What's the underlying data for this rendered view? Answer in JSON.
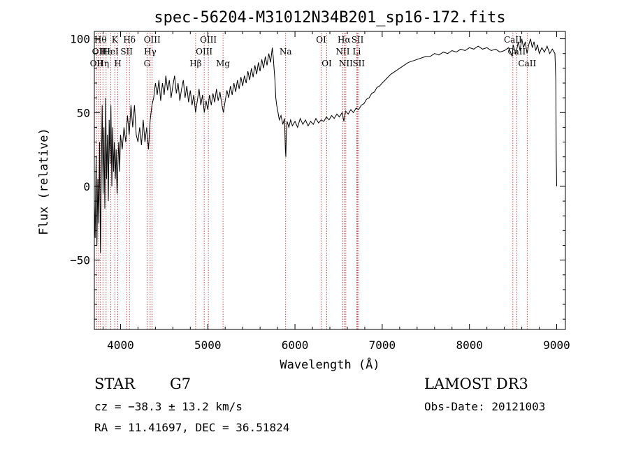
{
  "chart_data": {
    "type": "line",
    "title": "spec-56204-M31012N34B201_sp16-172.fits",
    "xlabel": "Wavelength (Å)",
    "ylabel": "Flux (relative)",
    "xlim": [
      3700,
      9100
    ],
    "ylim": [
      -97,
      105
    ],
    "xticks": [
      4000,
      5000,
      6000,
      7000,
      8000,
      9000
    ],
    "yticks": [
      -50,
      0,
      50,
      100
    ],
    "grid": false,
    "series": [
      {
        "color": "#000000",
        "points": [
          [
            3700,
            -10
          ],
          [
            3710,
            -35
          ],
          [
            3720,
            20
          ],
          [
            3730,
            -40
          ],
          [
            3740,
            5
          ],
          [
            3750,
            -25
          ],
          [
            3760,
            30
          ],
          [
            3770,
            -45
          ],
          [
            3780,
            10
          ],
          [
            3790,
            55
          ],
          [
            3800,
            -5
          ],
          [
            3810,
            40
          ],
          [
            3820,
            -15
          ],
          [
            3830,
            60
          ],
          [
            3840,
            5
          ],
          [
            3850,
            35
          ],
          [
            3860,
            -10
          ],
          [
            3870,
            45
          ],
          [
            3880,
            15
          ],
          [
            3890,
            55
          ],
          [
            3900,
            0
          ],
          [
            3910,
            40
          ],
          [
            3920,
            10
          ],
          [
            3930,
            30
          ],
          [
            3940,
            5
          ],
          [
            3950,
            25
          ],
          [
            3960,
            -5
          ],
          [
            3970,
            15
          ],
          [
            3980,
            30
          ],
          [
            3990,
            10
          ],
          [
            4000,
            35
          ],
          [
            4020,
            25
          ],
          [
            4040,
            40
          ],
          [
            4060,
            30
          ],
          [
            4080,
            48
          ],
          [
            4100,
            35
          ],
          [
            4120,
            55
          ],
          [
            4140,
            40
          ],
          [
            4160,
            55
          ],
          [
            4180,
            35
          ],
          [
            4200,
            30
          ],
          [
            4220,
            40
          ],
          [
            4240,
            28
          ],
          [
            4260,
            45
          ],
          [
            4280,
            30
          ],
          [
            4300,
            40
          ],
          [
            4320,
            25
          ],
          [
            4340,
            45
          ],
          [
            4360,
            55
          ],
          [
            4380,
            60
          ],
          [
            4400,
            70
          ],
          [
            4420,
            62
          ],
          [
            4440,
            72
          ],
          [
            4460,
            58
          ],
          [
            4480,
            70
          ],
          [
            4500,
            62
          ],
          [
            4520,
            75
          ],
          [
            4540,
            65
          ],
          [
            4560,
            72
          ],
          [
            4580,
            60
          ],
          [
            4600,
            68
          ],
          [
            4620,
            75
          ],
          [
            4640,
            63
          ],
          [
            4660,
            70
          ],
          [
            4680,
            58
          ],
          [
            4700,
            66
          ],
          [
            4720,
            72
          ],
          [
            4740,
            60
          ],
          [
            4760,
            68
          ],
          [
            4780,
            57
          ],
          [
            4800,
            65
          ],
          [
            4820,
            55
          ],
          [
            4840,
            62
          ],
          [
            4860,
            50
          ],
          [
            4880,
            58
          ],
          [
            4900,
            66
          ],
          [
            4920,
            55
          ],
          [
            4940,
            62
          ],
          [
            4960,
            50
          ],
          [
            4980,
            58
          ],
          [
            5000,
            52
          ],
          [
            5020,
            62
          ],
          [
            5040,
            55
          ],
          [
            5060,
            63
          ],
          [
            5080,
            57
          ],
          [
            5100,
            66
          ],
          [
            5120,
            58
          ],
          [
            5140,
            64
          ],
          [
            5160,
            56
          ],
          [
            5180,
            50
          ],
          [
            5200,
            58
          ],
          [
            5220,
            65
          ],
          [
            5240,
            60
          ],
          [
            5260,
            68
          ],
          [
            5280,
            62
          ],
          [
            5300,
            70
          ],
          [
            5320,
            64
          ],
          [
            5340,
            72
          ],
          [
            5360,
            66
          ],
          [
            5380,
            74
          ],
          [
            5400,
            68
          ],
          [
            5420,
            75
          ],
          [
            5440,
            70
          ],
          [
            5460,
            78
          ],
          [
            5480,
            72
          ],
          [
            5500,
            80
          ],
          [
            5520,
            74
          ],
          [
            5540,
            82
          ],
          [
            5560,
            76
          ],
          [
            5580,
            84
          ],
          [
            5600,
            78
          ],
          [
            5620,
            86
          ],
          [
            5640,
            80
          ],
          [
            5660,
            88
          ],
          [
            5680,
            82
          ],
          [
            5700,
            90
          ],
          [
            5720,
            84
          ],
          [
            5740,
            94
          ],
          [
            5750,
            88
          ],
          [
            5760,
            80
          ],
          [
            5770,
            72
          ],
          [
            5780,
            60
          ],
          [
            5790,
            55
          ],
          [
            5800,
            52
          ],
          [
            5820,
            45
          ],
          [
            5840,
            48
          ],
          [
            5860,
            42
          ],
          [
            5880,
            46
          ],
          [
            5890,
            25
          ],
          [
            5895,
            20
          ],
          [
            5900,
            35
          ],
          [
            5910,
            44
          ],
          [
            5930,
            40
          ],
          [
            5950,
            45
          ],
          [
            5970,
            41
          ],
          [
            6000,
            44
          ],
          [
            6030,
            40
          ],
          [
            6060,
            46
          ],
          [
            6090,
            42
          ],
          [
            6120,
            45
          ],
          [
            6150,
            41
          ],
          [
            6180,
            44
          ],
          [
            6210,
            42
          ],
          [
            6240,
            46
          ],
          [
            6270,
            43
          ],
          [
            6300,
            45
          ],
          [
            6330,
            44
          ],
          [
            6360,
            47
          ],
          [
            6390,
            45
          ],
          [
            6420,
            48
          ],
          [
            6450,
            46
          ],
          [
            6480,
            49
          ],
          [
            6510,
            47
          ],
          [
            6540,
            50
          ],
          [
            6560,
            44
          ],
          [
            6580,
            51
          ],
          [
            6610,
            49
          ],
          [
            6640,
            52
          ],
          [
            6670,
            50
          ],
          [
            6700,
            53
          ],
          [
            6730,
            52
          ],
          [
            6760,
            55
          ],
          [
            6790,
            56
          ],
          [
            6820,
            59
          ],
          [
            6850,
            60
          ],
          [
            6880,
            63
          ],
          [
            6910,
            64
          ],
          [
            6940,
            67
          ],
          [
            6970,
            68
          ],
          [
            7000,
            70
          ],
          [
            7050,
            73
          ],
          [
            7100,
            76
          ],
          [
            7150,
            78
          ],
          [
            7200,
            80
          ],
          [
            7250,
            82
          ],
          [
            7300,
            84
          ],
          [
            7350,
            85
          ],
          [
            7400,
            86
          ],
          [
            7450,
            87
          ],
          [
            7500,
            88
          ],
          [
            7550,
            88
          ],
          [
            7600,
            90
          ],
          [
            7650,
            89
          ],
          [
            7700,
            91
          ],
          [
            7750,
            90
          ],
          [
            7800,
            92
          ],
          [
            7850,
            91
          ],
          [
            7900,
            93
          ],
          [
            7950,
            92
          ],
          [
            8000,
            94
          ],
          [
            8050,
            93
          ],
          [
            8100,
            95
          ],
          [
            8150,
            93
          ],
          [
            8200,
            94
          ],
          [
            8250,
            92
          ],
          [
            8300,
            93
          ],
          [
            8350,
            91
          ],
          [
            8400,
            92
          ],
          [
            8450,
            94
          ],
          [
            8490,
            88
          ],
          [
            8500,
            96
          ],
          [
            8530,
            90
          ],
          [
            8540,
            92
          ],
          [
            8560,
            98
          ],
          [
            8580,
            92
          ],
          [
            8600,
            100
          ],
          [
            8620,
            94
          ],
          [
            8640,
            98
          ],
          [
            8660,
            90
          ],
          [
            8680,
            96
          ],
          [
            8700,
            100
          ],
          [
            8720,
            94
          ],
          [
            8740,
            98
          ],
          [
            8760,
            92
          ],
          [
            8780,
            96
          ],
          [
            8800,
            90
          ],
          [
            8830,
            94
          ],
          [
            8860,
            91
          ],
          [
            8890,
            95
          ],
          [
            8920,
            90
          ],
          [
            8950,
            93
          ],
          [
            8980,
            90
          ],
          [
            8990,
            72
          ],
          [
            8995,
            20
          ],
          [
            9000,
            0
          ]
        ]
      }
    ],
    "line_markers": [
      {
        "wl": 3726,
        "label": "OII",
        "row": 3
      },
      {
        "wl": 3750,
        "label": "OII",
        "row": 2
      },
      {
        "wl": 3770,
        "label": "Hθ",
        "row": 1
      },
      {
        "wl": 3798,
        "label": "Hη",
        "row": 3
      },
      {
        "wl": 3835,
        "label": "Hε",
        "row": 2
      },
      {
        "wl": 3889,
        "label": "HeI",
        "row": 2
      },
      {
        "wl": 3934,
        "label": "K",
        "row": 1
      },
      {
        "wl": 3969,
        "label": "H",
        "row": 3
      },
      {
        "wl": 4070,
        "label": "SII",
        "row": 2
      },
      {
        "wl": 4102,
        "label": "Hδ",
        "row": 1
      },
      {
        "wl": 4304,
        "label": "G",
        "row": 3
      },
      {
        "wl": 4340,
        "label": "Hγ",
        "row": 2
      },
      {
        "wl": 4363,
        "label": "OIII",
        "row": 1
      },
      {
        "wl": 4861,
        "label": "Hβ",
        "row": 3
      },
      {
        "wl": 4959,
        "label": "OIII",
        "row": 2
      },
      {
        "wl": 5007,
        "label": "OIII",
        "row": 1
      },
      {
        "wl": 5175,
        "label": "Mg",
        "row": 3
      },
      {
        "wl": 5893,
        "label": "Na",
        "row": 2
      },
      {
        "wl": 6300,
        "label": "OI",
        "row": 1
      },
      {
        "wl": 6364,
        "label": "OI",
        "row": 3
      },
      {
        "wl": 6548,
        "label": "NII",
        "row": 2
      },
      {
        "wl": 6563,
        "label": "Hα",
        "row": 1
      },
      {
        "wl": 6583,
        "label": "NII",
        "row": 3
      },
      {
        "wl": 6708,
        "label": "Li",
        "row": 2
      },
      {
        "wl": 6717,
        "label": "SII",
        "row": 1
      },
      {
        "wl": 6731,
        "label": "SII",
        "row": 3
      },
      {
        "wl": 8498,
        "label": "CaII",
        "row": 1
      },
      {
        "wl": 8542,
        "label": "CaII",
        "row": 2
      },
      {
        "wl": 8662,
        "label": "CaII",
        "row": 3
      }
    ],
    "marker_color": "#b22222"
  },
  "info": {
    "class": "STAR",
    "subclass": "G7",
    "survey": "LAMOST DR3",
    "cz": "cz = −38.3 ± 13.2 km/s",
    "obs_date": "Obs-Date: 20121003",
    "radec": "RA =  11.41697, DEC =  36.51824"
  }
}
